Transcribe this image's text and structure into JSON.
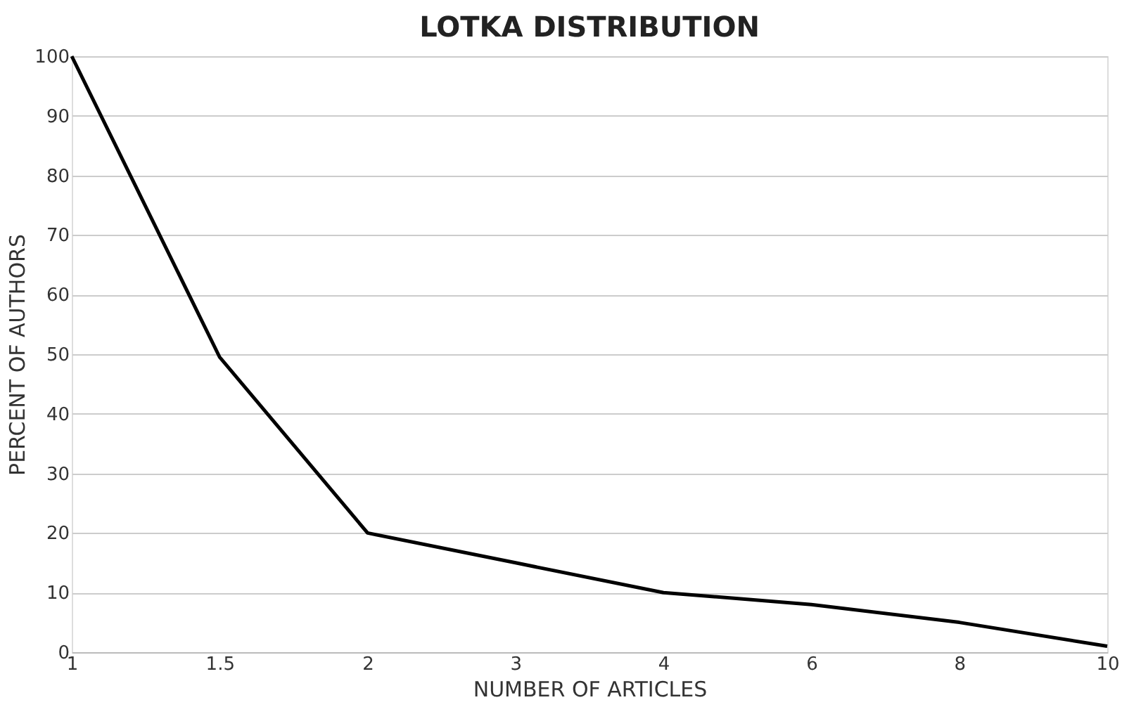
{
  "chart_data": {
    "type": "line",
    "title": "LOTKA DISTRIBUTION",
    "xlabel": "NUMBER OF ARTICLES",
    "ylabel": "PERCENT OF AUTHORS",
    "categories": [
      "1",
      "1.5",
      "2",
      "3",
      "4",
      "6",
      "8",
      "10"
    ],
    "series": [
      {
        "color": "#000000",
        "values": [
          100,
          49.5,
          20,
          15,
          10,
          8,
          5,
          1
        ]
      }
    ],
    "ylim": [
      0,
      100
    ],
    "yticks": [
      0,
      10,
      20,
      30,
      40,
      50,
      60,
      70,
      80,
      90,
      100
    ],
    "grid": "y",
    "legend": false,
    "marker": "none",
    "line_style": "solid"
  }
}
